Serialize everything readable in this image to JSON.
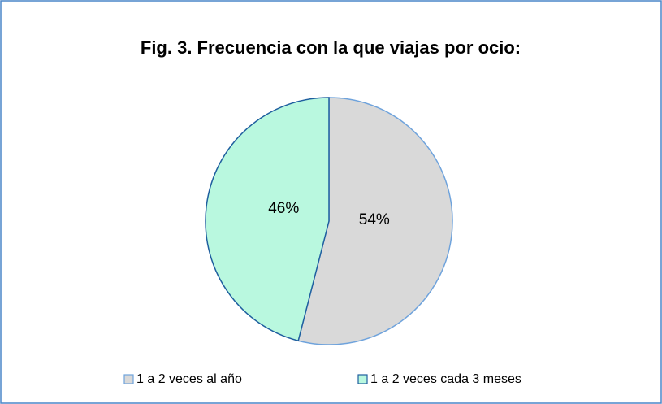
{
  "chart_data": {
    "type": "pie",
    "title": "Fig. 3. Frecuencia con la que viajas por ocio:",
    "categories": [
      "1 a 2 veces al año",
      "1 a 2 veces cada 3 meses"
    ],
    "values": [
      54,
      46
    ],
    "value_labels": [
      "54%",
      "46%"
    ],
    "colors": [
      "#d9d9d9",
      "#b9f8df"
    ],
    "legend": "bottom"
  }
}
